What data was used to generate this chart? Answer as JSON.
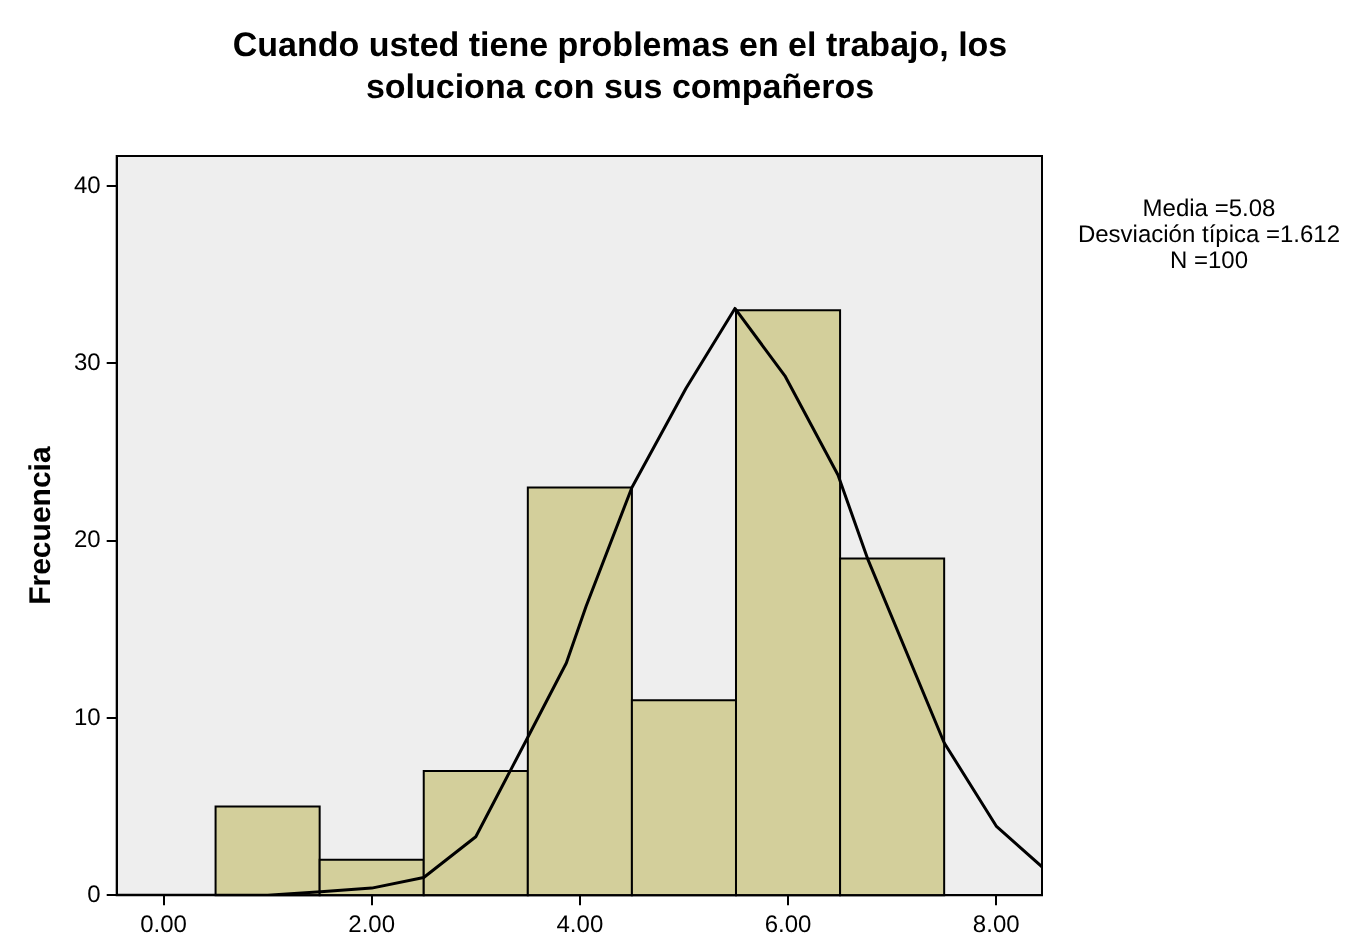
{
  "chart_data": {
    "type": "histogram",
    "title": "Cuando usted tiene problemas en el trabajo, los soluciona con sus compañeros",
    "ylabel": "Frecuencia",
    "bins": [
      0.5,
      1.5,
      2.5,
      3.5,
      4.5,
      5.5,
      6.5,
      7.5
    ],
    "values": [
      5,
      2,
      7,
      23,
      11,
      33,
      19
    ],
    "color": "#d3cf9b",
    "series": [
      {
        "type": "line",
        "color": "#000000",
        "x": [
          -0.45,
          0.5,
          1.0,
          1.51,
          2.0,
          2.5,
          3.0,
          3.49,
          3.87,
          4.06,
          4.5,
          5.02,
          5.49,
          5.97,
          6.48,
          6.77,
          7.5,
          8.0,
          8.44
        ],
        "values": [
          0,
          0,
          0,
          0.2,
          0.4,
          1.0,
          3.3,
          8.8,
          13.1,
          16.3,
          23.0,
          28.6,
          33.1,
          29.3,
          23.7,
          18.9,
          8.6,
          3.9,
          1.6
        ]
      }
    ],
    "xlim": [
      -0.45,
      8.44
    ],
    "xticks": [
      {
        "value": 0,
        "label": "0.00"
      },
      {
        "value": 2,
        "label": "2.00"
      },
      {
        "value": 4,
        "label": "4.00"
      },
      {
        "value": 6,
        "label": "6.00"
      },
      {
        "value": 8,
        "label": "8.00"
      }
    ],
    "ylim": [
      0,
      41.7
    ],
    "yticks": [
      0,
      10,
      20,
      30,
      40
    ],
    "grid": false,
    "legend": false,
    "marker": "none",
    "annotations": [
      "Media =5.08",
      "Desviación típica =1.612",
      "N =100"
    ]
  }
}
